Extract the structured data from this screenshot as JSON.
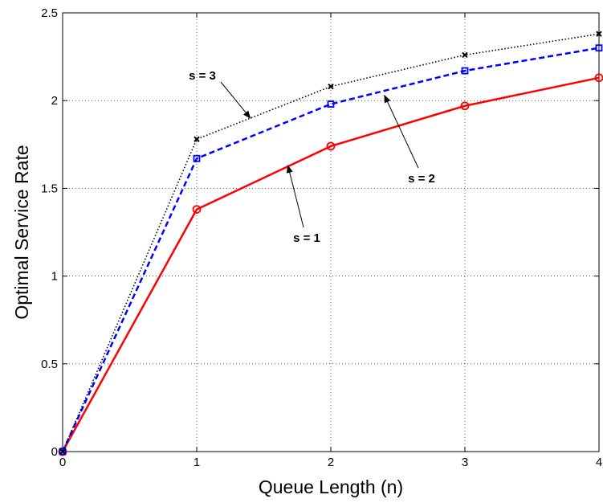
{
  "chart_data": {
    "type": "line",
    "xlabel": "Queue Length (n)",
    "ylabel": "Optimal Service Rate",
    "xlim": [
      0,
      4
    ],
    "ylim": [
      0,
      2.5
    ],
    "xticks": [
      0,
      1,
      2,
      3,
      4
    ],
    "xtick_labels": [
      "0",
      "1",
      "2",
      "3",
      "4"
    ],
    "yticks": [
      0,
      0.5,
      1,
      1.5,
      2,
      2.5
    ],
    "ytick_labels": [
      "0",
      "0.5",
      "1",
      "1.5",
      "2",
      "2.5"
    ],
    "grid": true,
    "x": [
      0,
      1,
      2,
      3,
      4
    ],
    "series": [
      {
        "label": "s = 1",
        "values": [
          0,
          1.38,
          1.74,
          1.97,
          2.13
        ],
        "color": "#ff0000",
        "line_style": "solid",
        "marker": "circle"
      },
      {
        "label": "s = 2",
        "values": [
          0,
          1.67,
          1.98,
          2.17,
          2.3
        ],
        "color": "#0000ff",
        "line_style": "dashed",
        "marker": "square"
      },
      {
        "label": "s = 3",
        "values": [
          0,
          1.78,
          2.08,
          2.26,
          2.38
        ],
        "color": "#000000",
        "line_style": "dotted",
        "marker": "x"
      }
    ],
    "annotations": [
      {
        "text": "s = 3",
        "arrow_to": [
          1.4,
          1.9
        ]
      },
      {
        "text": "s = 2",
        "arrow_to": [
          2.4,
          2.03
        ]
      },
      {
        "text": "s = 1",
        "arrow_to": [
          1.68,
          1.63
        ]
      }
    ]
  }
}
